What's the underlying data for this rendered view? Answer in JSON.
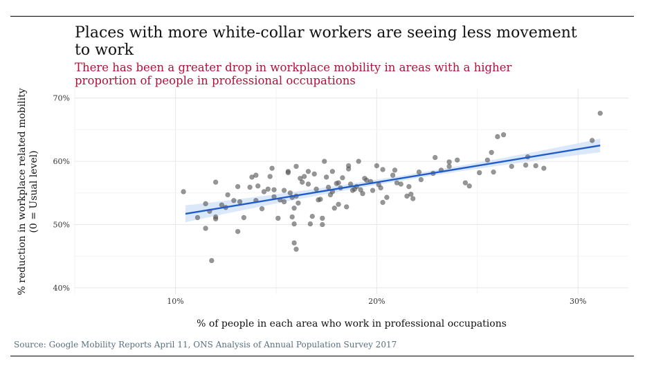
{
  "header": {
    "title": "Places with more white-collar workers are seeing less movement to work",
    "subtitle": "There has been a greater drop in workplace mobility in areas with a higher proportion of people in professional occupations"
  },
  "footer": {
    "source": "Source: Google Mobility Reports April 11, ONS Analysis of Annual Population Survey 2017"
  },
  "colors": {
    "points": "#555555",
    "trend": "#1f5bc9",
    "band": "#cfe0f7",
    "subtitle": "#b0113b"
  },
  "chart_data": {
    "type": "scatter",
    "title": "Places with more white-collar workers are seeing less movement to work",
    "subtitle": "There has been a greater drop in workplace mobility in areas with a higher proportion of people in professional occupations",
    "xlabel": "% of people in each area who work in professional occupations",
    "ylabel": "% reduction in workplace related mobility (0 = Usual level)",
    "xlim": [
      5,
      32.5
    ],
    "ylim": [
      39,
      71.5
    ],
    "x_ticks": [
      10,
      20,
      30
    ],
    "x_tick_labels": [
      "10%",
      "20%",
      "30%"
    ],
    "y_ticks": [
      40,
      50,
      60,
      70
    ],
    "y_tick_labels": [
      "40%",
      "50%",
      "60%",
      "70%"
    ],
    "grid": true,
    "trend": {
      "x": [
        10.5,
        31.1
      ],
      "y": [
        51.7,
        62.5
      ],
      "band_halfwidth_ends": 1.2,
      "band_halfwidth_mid": 0.4
    },
    "points": [
      {
        "x": 10.4,
        "y": 55.2
      },
      {
        "x": 11.1,
        "y": 51.1
      },
      {
        "x": 11.5,
        "y": 53.3
      },
      {
        "x": 11.5,
        "y": 49.4
      },
      {
        "x": 11.7,
        "y": 52.1
      },
      {
        "x": 11.8,
        "y": 44.3
      },
      {
        "x": 12.0,
        "y": 56.7
      },
      {
        "x": 12.0,
        "y": 51.2
      },
      {
        "x": 12.0,
        "y": 50.9
      },
      {
        "x": 12.3,
        "y": 53.1
      },
      {
        "x": 12.5,
        "y": 52.7
      },
      {
        "x": 12.6,
        "y": 54.7
      },
      {
        "x": 12.9,
        "y": 53.8
      },
      {
        "x": 13.1,
        "y": 48.9
      },
      {
        "x": 13.2,
        "y": 53.6
      },
      {
        "x": 13.4,
        "y": 51.1
      },
      {
        "x": 13.1,
        "y": 56.0
      },
      {
        "x": 13.7,
        "y": 55.9
      },
      {
        "x": 13.8,
        "y": 57.5
      },
      {
        "x": 14.0,
        "y": 53.8
      },
      {
        "x": 14.0,
        "y": 57.8
      },
      {
        "x": 14.1,
        "y": 56.1
      },
      {
        "x": 14.3,
        "y": 52.5
      },
      {
        "x": 14.4,
        "y": 55.2
      },
      {
        "x": 14.6,
        "y": 55.6
      },
      {
        "x": 14.7,
        "y": 57.6
      },
      {
        "x": 14.8,
        "y": 58.9
      },
      {
        "x": 14.9,
        "y": 55.5
      },
      {
        "x": 14.9,
        "y": 54.4
      },
      {
        "x": 15.1,
        "y": 51.0
      },
      {
        "x": 15.2,
        "y": 53.9
      },
      {
        "x": 15.4,
        "y": 55.4
      },
      {
        "x": 15.4,
        "y": 53.6
      },
      {
        "x": 15.6,
        "y": 58.4
      },
      {
        "x": 15.6,
        "y": 58.2
      },
      {
        "x": 15.7,
        "y": 55.0
      },
      {
        "x": 15.8,
        "y": 54.3
      },
      {
        "x": 15.9,
        "y": 52.6
      },
      {
        "x": 15.8,
        "y": 51.2
      },
      {
        "x": 15.9,
        "y": 50.1
      },
      {
        "x": 15.9,
        "y": 47.1
      },
      {
        "x": 16.0,
        "y": 46.1
      },
      {
        "x": 16.0,
        "y": 54.5
      },
      {
        "x": 16.0,
        "y": 59.2
      },
      {
        "x": 16.1,
        "y": 53.4
      },
      {
        "x": 16.2,
        "y": 57.3
      },
      {
        "x": 16.3,
        "y": 56.7
      },
      {
        "x": 16.6,
        "y": 56.4
      },
      {
        "x": 16.4,
        "y": 57.6
      },
      {
        "x": 16.6,
        "y": 58.4
      },
      {
        "x": 16.7,
        "y": 50.1
      },
      {
        "x": 16.8,
        "y": 51.3
      },
      {
        "x": 16.9,
        "y": 58.0
      },
      {
        "x": 17.0,
        "y": 55.6
      },
      {
        "x": 17.1,
        "y": 53.9
      },
      {
        "x": 17.2,
        "y": 54.0
      },
      {
        "x": 17.3,
        "y": 51.0
      },
      {
        "x": 17.3,
        "y": 50.0
      },
      {
        "x": 17.4,
        "y": 60.0
      },
      {
        "x": 17.5,
        "y": 57.5
      },
      {
        "x": 17.6,
        "y": 55.9
      },
      {
        "x": 17.7,
        "y": 54.7
      },
      {
        "x": 17.8,
        "y": 58.4
      },
      {
        "x": 17.8,
        "y": 55.2
      },
      {
        "x": 17.9,
        "y": 52.6
      },
      {
        "x": 18.0,
        "y": 56.5
      },
      {
        "x": 18.1,
        "y": 53.2
      },
      {
        "x": 18.1,
        "y": 56.6
      },
      {
        "x": 18.2,
        "y": 55.8
      },
      {
        "x": 18.3,
        "y": 57.4
      },
      {
        "x": 18.5,
        "y": 52.8
      },
      {
        "x": 18.6,
        "y": 58.8
      },
      {
        "x": 18.6,
        "y": 59.3
      },
      {
        "x": 18.7,
        "y": 56.4
      },
      {
        "x": 18.8,
        "y": 55.4
      },
      {
        "x": 18.9,
        "y": 55.6
      },
      {
        "x": 19.0,
        "y": 56.0
      },
      {
        "x": 19.1,
        "y": 60.0
      },
      {
        "x": 19.2,
        "y": 55.5
      },
      {
        "x": 19.3,
        "y": 54.9
      },
      {
        "x": 19.4,
        "y": 57.3
      },
      {
        "x": 19.5,
        "y": 57.0
      },
      {
        "x": 19.7,
        "y": 56.8
      },
      {
        "x": 19.8,
        "y": 55.4
      },
      {
        "x": 20.0,
        "y": 59.3
      },
      {
        "x": 20.1,
        "y": 56.3
      },
      {
        "x": 20.2,
        "y": 55.8
      },
      {
        "x": 20.3,
        "y": 58.7
      },
      {
        "x": 20.3,
        "y": 53.5
      },
      {
        "x": 20.5,
        "y": 54.3
      },
      {
        "x": 20.8,
        "y": 57.8
      },
      {
        "x": 20.9,
        "y": 58.6
      },
      {
        "x": 21.0,
        "y": 56.6
      },
      {
        "x": 21.2,
        "y": 56.4
      },
      {
        "x": 21.5,
        "y": 54.5
      },
      {
        "x": 21.6,
        "y": 56.0
      },
      {
        "x": 21.7,
        "y": 54.8
      },
      {
        "x": 21.8,
        "y": 54.1
      },
      {
        "x": 22.1,
        "y": 58.3
      },
      {
        "x": 22.2,
        "y": 57.1
      },
      {
        "x": 22.8,
        "y": 58.1
      },
      {
        "x": 22.9,
        "y": 60.6
      },
      {
        "x": 23.2,
        "y": 58.6
      },
      {
        "x": 23.6,
        "y": 59.9
      },
      {
        "x": 23.6,
        "y": 59.2
      },
      {
        "x": 24.0,
        "y": 60.2
      },
      {
        "x": 24.4,
        "y": 56.6
      },
      {
        "x": 24.6,
        "y": 56.1
      },
      {
        "x": 25.1,
        "y": 58.2
      },
      {
        "x": 25.5,
        "y": 60.2
      },
      {
        "x": 25.7,
        "y": 61.4
      },
      {
        "x": 25.8,
        "y": 58.3
      },
      {
        "x": 26.0,
        "y": 63.9
      },
      {
        "x": 26.3,
        "y": 64.2
      },
      {
        "x": 26.7,
        "y": 59.2
      },
      {
        "x": 27.4,
        "y": 59.4
      },
      {
        "x": 27.5,
        "y": 60.7
      },
      {
        "x": 27.9,
        "y": 59.3
      },
      {
        "x": 28.3,
        "y": 58.9
      },
      {
        "x": 30.7,
        "y": 63.3
      },
      {
        "x": 31.1,
        "y": 67.6
      }
    ]
  }
}
